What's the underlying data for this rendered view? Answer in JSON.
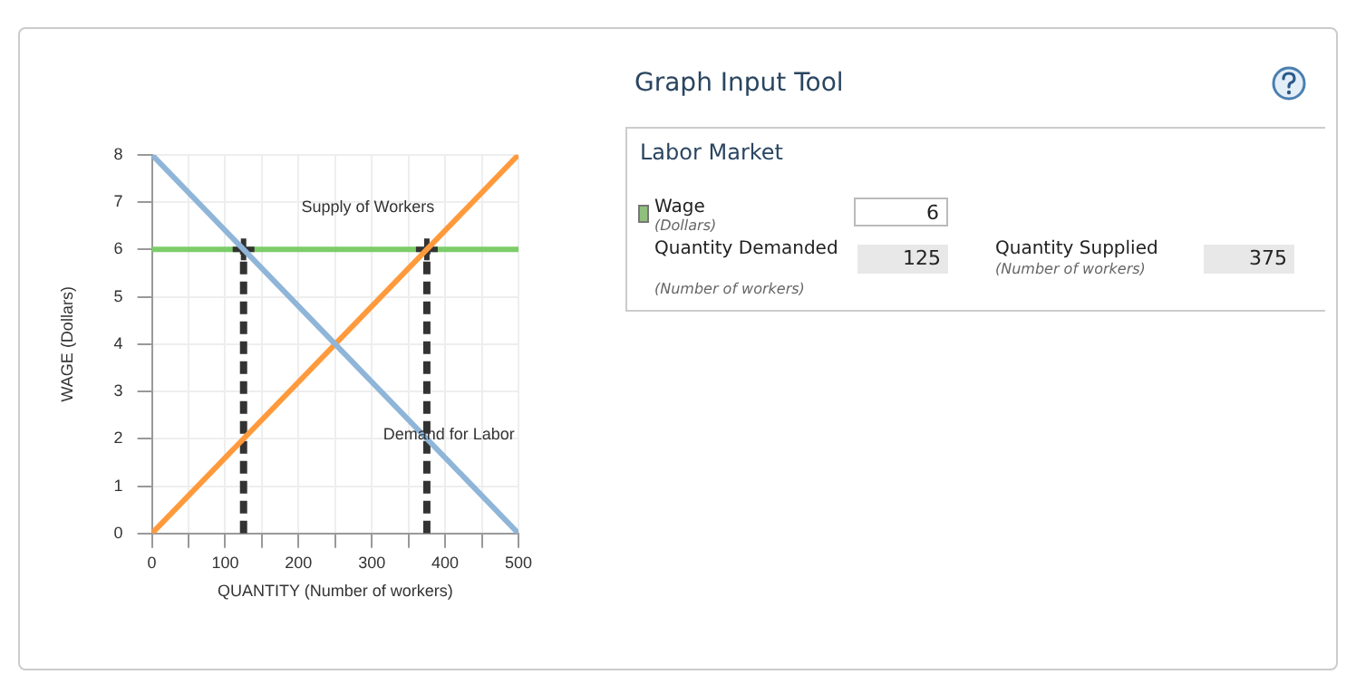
{
  "chart_data": [
    {
      "type": "line",
      "xlabel": "QUANTITY (Number of workers)",
      "ylabel": "WAGE (Dollars)",
      "xlim": [
        0,
        500
      ],
      "ylim": [
        0,
        8
      ],
      "xticks": [
        0,
        {
          "value": 50,
          "label": null
        },
        100,
        {
          "value": 150,
          "label": null
        },
        200,
        {
          "value": 250,
          "label": null
        },
        300,
        {
          "value": 350,
          "label": null
        },
        400,
        {
          "value": 450,
          "label": null
        },
        500
      ],
      "yticks": [
        0,
        1,
        2,
        3,
        4,
        5,
        6,
        7,
        8
      ],
      "grid": true,
      "legend": false,
      "marker": "none",
      "series": [
        {
          "name": "Demand for Labor",
          "type": "line",
          "color": "#8fb5d8",
          "x": [
            0,
            500
          ],
          "values": [
            8,
            0
          ]
        },
        {
          "name": "Supply of Workers",
          "type": "line",
          "color": "#ff9a3c",
          "x": [
            0,
            500
          ],
          "values": [
            0,
            8
          ]
        },
        {
          "type": "line",
          "line_style": "dashed",
          "color": "#333333",
          "x": [
            125,
            125
          ],
          "values": [
            0,
            6
          ]
        },
        {
          "type": "line",
          "line_style": "dashed",
          "color": "#333333",
          "x": [
            375,
            375
          ],
          "values": [
            0,
            6
          ]
        },
        {
          "type": "scatter",
          "marker": "cross",
          "color": "#333333",
          "x": [
            125,
            375
          ],
          "values": [
            6,
            6
          ]
        }
      ],
      "ref_lines": [
        {
          "axis": "y",
          "value": 6,
          "color": "#7ccd6a"
        }
      ]
    },
    {
      "type": "other",
      "title": "Graph Input Tool",
      "subtitle": "Labor Market",
      "annotations": [
        "Wage",
        "(Dollars)",
        "6",
        "Quantity Demanded",
        "(Number of workers)",
        "125",
        "Quantity Supplied",
        "(Number of workers)",
        "375"
      ]
    }
  ]
}
